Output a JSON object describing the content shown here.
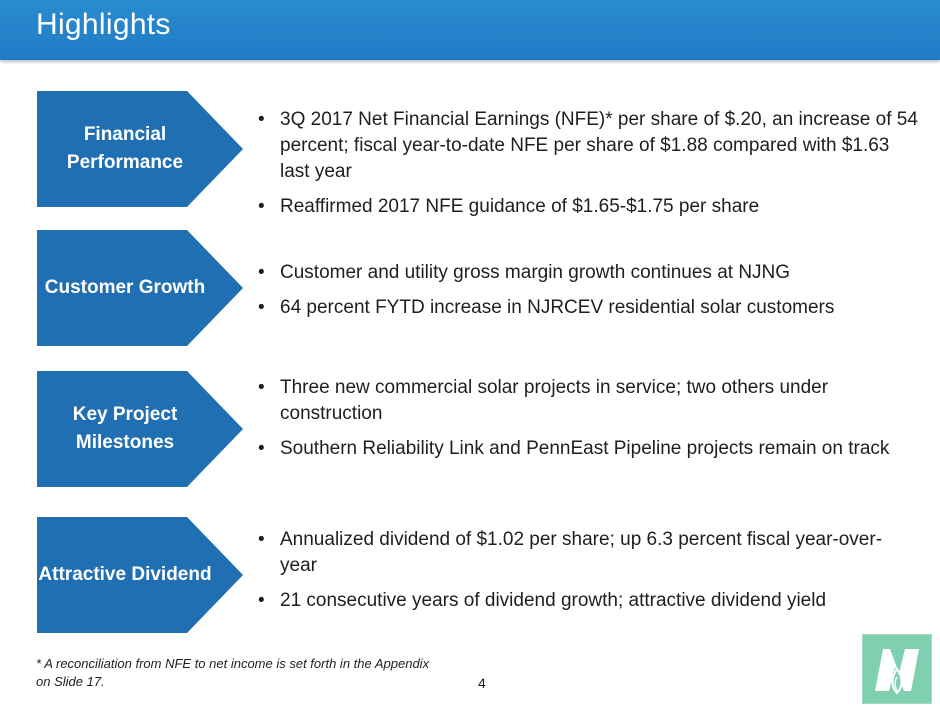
{
  "title": "Highlights",
  "sections": [
    {
      "label": "Financial Performance",
      "bullets": [
        "3Q 2017 Net Financial Earnings (NFE)* per share of $.20, an increase of 54 percent; fiscal year-to-date NFE per share of $1.88 compared with $1.63 last year",
        "Reaffirmed 2017 NFE guidance of $1.65-$1.75 per share"
      ]
    },
    {
      "label": "Customer Growth",
      "bullets": [
        "Customer and utility gross margin growth continues at NJNG",
        "64 percent FYTD increase in NJRCEV residential solar customers"
      ]
    },
    {
      "label": "Key Project Milestones",
      "bullets": [
        "Three new commercial solar projects in service; two others under construction",
        "Southern Reliability Link and PennEast Pipeline projects remain on track"
      ]
    },
    {
      "label": "Attractive Dividend",
      "bullets": [
        "Annualized dividend of $1.02 per share; up 6.3 percent fiscal year-over-year",
        "21 consecutive years of dividend growth; attractive dividend yield"
      ]
    }
  ],
  "footnote": "* A reconciliation from NFE to net income is set forth in the Appendix on Slide 17.",
  "page_number": "4",
  "logo_icon": "njr-logo-icon",
  "colors": {
    "title_bar": "#1f7cc4",
    "arrow": "#1f6fb2",
    "logo_bg": "#7fcfb1"
  }
}
